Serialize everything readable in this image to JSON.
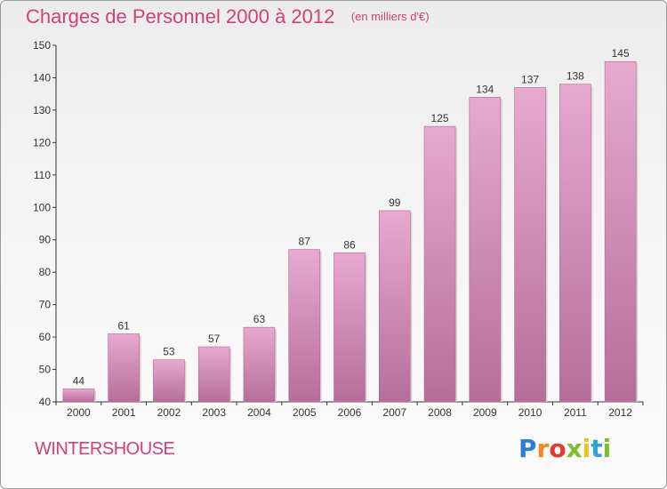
{
  "header": {
    "title": "Charges de Personnel 2000 à 2012",
    "subtitle": "(en milliers d'€)"
  },
  "footer": {
    "commune": "WINTERSHOUSE",
    "logo_text": "Proxiti"
  },
  "colors": {
    "title": "#d0407a",
    "bar_top": "#e8a9cf",
    "bar_bottom": "#b56e9a",
    "axis": "#333333"
  },
  "chart_data": {
    "type": "bar",
    "title": "Charges de Personnel 2000 à 2012",
    "subtitle": "(en milliers d'€)",
    "categories": [
      "2000",
      "2001",
      "2002",
      "2003",
      "2004",
      "2005",
      "2006",
      "2007",
      "2008",
      "2009",
      "2010",
      "2011",
      "2012"
    ],
    "values": [
      44,
      61,
      53,
      57,
      63,
      87,
      86,
      99,
      125,
      134,
      137,
      138,
      145
    ],
    "ylim": [
      40,
      150
    ],
    "yticks": [
      40,
      50,
      60,
      70,
      80,
      90,
      100,
      110,
      120,
      130,
      140,
      150
    ],
    "grid": false,
    "data_labels": true
  }
}
